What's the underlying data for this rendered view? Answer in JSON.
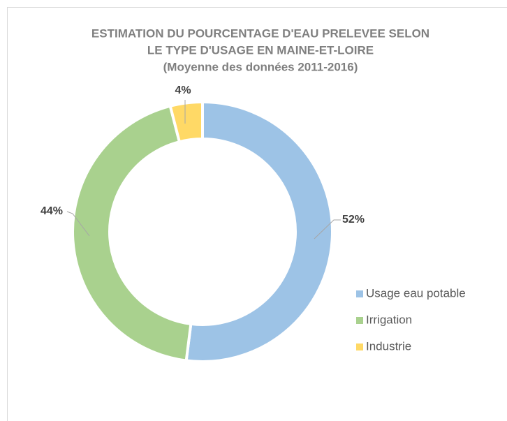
{
  "chart_data": {
    "type": "donut",
    "title": [
      "ESTIMATION DU POURCENTAGE D'EAU PRELEVEE SELON",
      "LE TYPE D'USAGE EN MAINE-ET-LOIRE"
    ],
    "subtitle": "(Moyenne des données 2011-2016)",
    "categories": [
      "Usage eau potable",
      "Irrigation",
      "Industrie"
    ],
    "values": [
      52,
      44,
      4
    ],
    "value_labels": [
      "52%",
      "44%",
      "4%"
    ],
    "colors": [
      "#9dc3e6",
      "#a9d18e",
      "#ffd966"
    ],
    "legend": "right"
  }
}
